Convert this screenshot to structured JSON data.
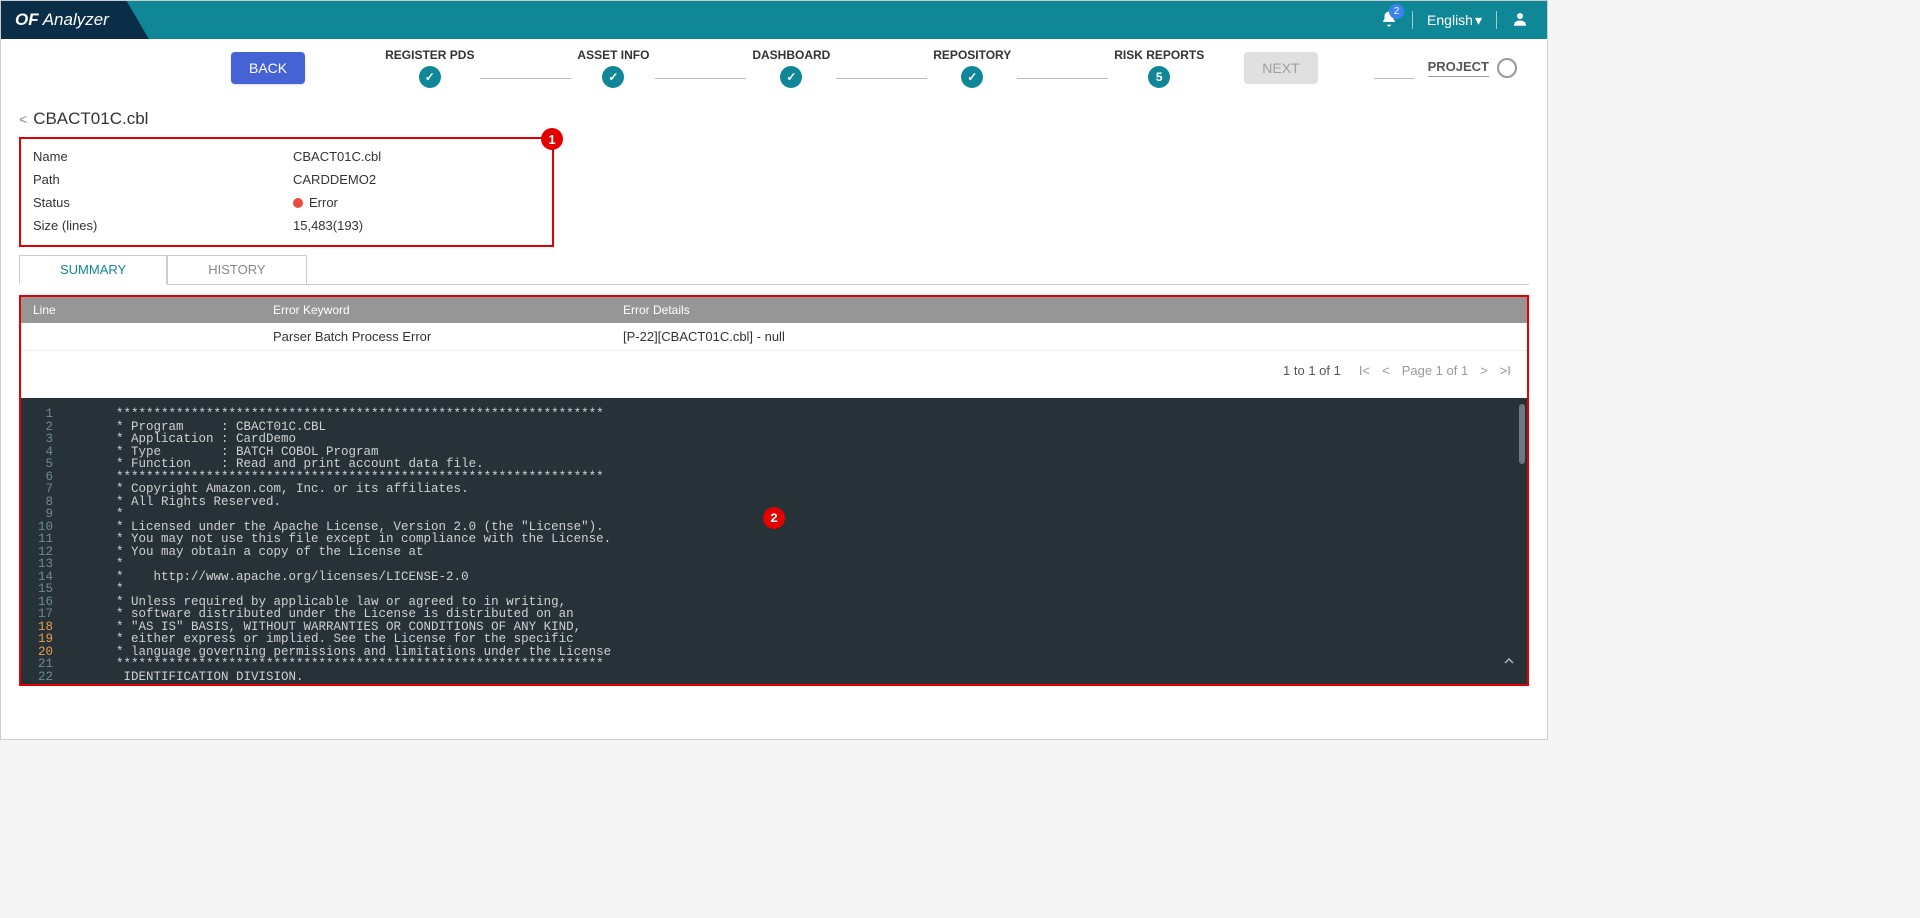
{
  "colors": {
    "teal": "#108797",
    "navy": "#0a2d48",
    "red": "#e30000",
    "blue_btn": "#4663d6",
    "grey_btn": "#e0e0e0",
    "code_bg": "#273238",
    "table_header": "#969696"
  },
  "topbar": {
    "app_name_bold": "OF",
    "app_name_rest": " Analyzer",
    "notification_count": "2",
    "language_label": "English",
    "user_aria": "User menu"
  },
  "nav": {
    "back_label": "BACK",
    "next_label": "NEXT",
    "project_label": "PROJECT",
    "steps": [
      {
        "label": "REGISTER PDS",
        "icon": "check"
      },
      {
        "label": "ASSET INFO",
        "icon": "check"
      },
      {
        "label": "DASHBOARD",
        "icon": "check"
      },
      {
        "label": "REPOSITORY",
        "icon": "check"
      },
      {
        "label": "RISK REPORTS",
        "icon": "5"
      }
    ]
  },
  "breadcrumb": {
    "title": "CBACT01C.cbl"
  },
  "callouts": {
    "c1": "1",
    "c2": "2"
  },
  "info": {
    "name_key": "Name",
    "name_val": "CBACT01C.cbl",
    "path_key": "Path",
    "path_val": "CARDDEMO2",
    "status_key": "Status",
    "status_val": "Error",
    "size_key": "Size (lines)",
    "size_val": "15,483(193)"
  },
  "tabs": {
    "summary": "SUMMARY",
    "history": "HISTORY"
  },
  "table": {
    "col_line": "Line",
    "col_keyword": "Error Keyword",
    "col_details": "Error Details",
    "rows": [
      {
        "line": "",
        "keyword": "Parser Batch Process Error",
        "details": "[P-22][CBACT01C.cbl] - null"
      }
    ]
  },
  "pager": {
    "range": "1 to 1 of 1",
    "page": "Page 1 of 1"
  },
  "code": {
    "lines": [
      "      *****************************************************************",
      "      * Program     : CBACT01C.CBL",
      "      * Application : CardDemo",
      "      * Type        : BATCH COBOL Program",
      "      * Function    : Read and print account data file.",
      "      *****************************************************************",
      "      * Copyright Amazon.com, Inc. or its affiliates.",
      "      * All Rights Reserved.",
      "      *",
      "      * Licensed under the Apache License, Version 2.0 (the \"License\").",
      "      * You may not use this file except in compliance with the License.",
      "      * You may obtain a copy of the License at",
      "      *",
      "      *    http://www.apache.org/licenses/LICENSE-2.0",
      "      *",
      "      * Unless required by applicable law or agreed to in writing,",
      "      * software distributed under the License is distributed on an",
      "      * \"AS IS\" BASIS, WITHOUT WARRANTIES OR CONDITIONS OF ANY KIND,",
      "      * either express or implied. See the License for the specific",
      "      * language governing permissions and limitations under the License",
      "      *****************************************************************",
      "       IDENTIFICATION DIVISION."
    ],
    "highlight_lines": [
      18,
      19,
      20
    ]
  }
}
